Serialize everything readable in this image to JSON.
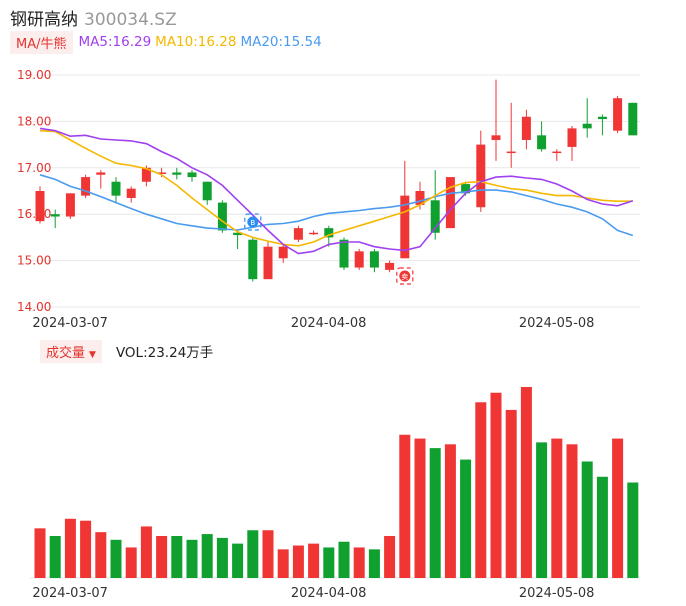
{
  "header": {
    "name": "钢研高纳",
    "code": "300034.SZ"
  },
  "ma_bar": {
    "selector_label": "MA/牛熊",
    "items": [
      {
        "label": "MA5:16.29",
        "color": "#a040f0"
      },
      {
        "label": "MA10:16.28",
        "color": "#f5b800"
      },
      {
        "label": "MA20:15.54",
        "color": "#4a9bf0"
      }
    ]
  },
  "volume_bar": {
    "selector_label": "成交量",
    "vol_text": "VOL:23.24万手"
  },
  "markers": {
    "buy": "B",
    "sell": "卖"
  },
  "colors": {
    "up": "#f03535",
    "down": "#10a030",
    "grid": "#e8e8e8"
  },
  "chart_data": {
    "type": "candlestick",
    "yticks": [
      "19.00",
      "18.00",
      "17.00",
      "16.00",
      "15.00",
      "14.00"
    ],
    "ylim": [
      14.0,
      19.0
    ],
    "xtick_labels": [
      "2024-03-07",
      "2024-04-08",
      "2024-05-08"
    ],
    "xtick_index": [
      1,
      18,
      33
    ],
    "candles": [
      {
        "o": 15.85,
        "c": 16.5,
        "h": 16.6,
        "l": 15.8
      },
      {
        "o": 16.0,
        "c": 15.95,
        "h": 16.1,
        "l": 15.7
      },
      {
        "o": 15.95,
        "c": 16.45,
        "h": 16.45,
        "l": 15.9
      },
      {
        "o": 16.4,
        "c": 16.8,
        "h": 16.85,
        "l": 16.35
      },
      {
        "o": 16.85,
        "c": 16.9,
        "h": 16.95,
        "l": 16.55
      },
      {
        "o": 16.7,
        "c": 16.4,
        "h": 16.8,
        "l": 16.25
      },
      {
        "o": 16.35,
        "c": 16.55,
        "h": 16.6,
        "l": 16.25
      },
      {
        "o": 16.7,
        "c": 17.0,
        "h": 17.05,
        "l": 16.6
      },
      {
        "o": 16.9,
        "c": 16.9,
        "h": 17.0,
        "l": 16.8
      },
      {
        "o": 16.9,
        "c": 16.85,
        "h": 17.0,
        "l": 16.75
      },
      {
        "o": 16.9,
        "c": 16.8,
        "h": 16.95,
        "l": 16.7
      },
      {
        "o": 16.7,
        "c": 16.3,
        "h": 16.7,
        "l": 16.2
      },
      {
        "o": 16.25,
        "c": 15.65,
        "h": 16.3,
        "l": 15.6
      },
      {
        "o": 15.6,
        "c": 15.55,
        "h": 15.65,
        "l": 15.25
      },
      {
        "o": 15.45,
        "c": 14.6,
        "h": 15.5,
        "l": 14.55
      },
      {
        "o": 14.6,
        "c": 15.3,
        "h": 15.4,
        "l": 14.6
      },
      {
        "o": 15.05,
        "c": 15.3,
        "h": 15.35,
        "l": 14.95
      },
      {
        "o": 15.45,
        "c": 15.7,
        "h": 15.75,
        "l": 15.4
      },
      {
        "o": 15.6,
        "c": 15.6,
        "h": 15.65,
        "l": 15.55
      },
      {
        "o": 15.7,
        "c": 15.5,
        "h": 15.75,
        "l": 15.3
      },
      {
        "o": 15.45,
        "c": 14.85,
        "h": 15.5,
        "l": 14.8
      },
      {
        "o": 14.85,
        "c": 15.2,
        "h": 15.25,
        "l": 14.8
      },
      {
        "o": 15.2,
        "c": 14.85,
        "h": 15.25,
        "l": 14.75
      },
      {
        "o": 14.8,
        "c": 14.95,
        "h": 15.0,
        "l": 14.75
      },
      {
        "o": 15.05,
        "c": 16.4,
        "h": 17.15,
        "l": 15.05
      },
      {
        "o": 16.2,
        "c": 16.5,
        "h": 16.7,
        "l": 16.1
      },
      {
        "o": 16.3,
        "c": 15.6,
        "h": 16.95,
        "l": 15.45
      },
      {
        "o": 15.7,
        "c": 16.8,
        "h": 16.8,
        "l": 15.7
      },
      {
        "o": 16.65,
        "c": 16.45,
        "h": 16.7,
        "l": 16.4
      },
      {
        "o": 16.15,
        "c": 17.5,
        "h": 17.8,
        "l": 16.05
      },
      {
        "o": 17.6,
        "c": 17.7,
        "h": 18.9,
        "l": 17.15
      },
      {
        "o": 17.35,
        "c": 17.35,
        "h": 18.4,
        "l": 17.0
      },
      {
        "o": 17.6,
        "c": 18.1,
        "h": 18.25,
        "l": 17.4
      },
      {
        "o": 17.7,
        "c": 17.4,
        "h": 18.0,
        "l": 17.35
      },
      {
        "o": 17.35,
        "c": 17.35,
        "h": 17.4,
        "l": 17.15
      },
      {
        "o": 17.45,
        "c": 17.85,
        "h": 17.9,
        "l": 17.15
      },
      {
        "o": 17.95,
        "c": 17.85,
        "h": 18.5,
        "l": 17.65
      },
      {
        "o": 18.1,
        "c": 18.05,
        "h": 18.15,
        "l": 17.7
      },
      {
        "o": 17.8,
        "c": 18.5,
        "h": 18.55,
        "l": 17.75
      },
      {
        "o": 18.4,
        "c": 17.7,
        "h": 18.4,
        "l": 17.7
      }
    ],
    "ma5": [
      17.85,
      17.8,
      17.68,
      17.7,
      17.62,
      17.6,
      17.58,
      17.52,
      17.35,
      17.2,
      17.0,
      16.85,
      16.62,
      16.3,
      15.98,
      15.65,
      15.35,
      15.15,
      15.2,
      15.35,
      15.4,
      15.4,
      15.3,
      15.25,
      15.22,
      15.3,
      15.7,
      16.1,
      16.45,
      16.7,
      16.8,
      16.82,
      16.78,
      16.75,
      16.65,
      16.5,
      16.32,
      16.22,
      16.18,
      16.29
    ],
    "ma10": [
      17.8,
      17.78,
      17.6,
      17.42,
      17.25,
      17.1,
      17.05,
      16.98,
      16.85,
      16.62,
      16.35,
      16.1,
      15.85,
      15.62,
      15.5,
      15.42,
      15.35,
      15.32,
      15.4,
      15.55,
      15.65,
      15.75,
      15.85,
      15.95,
      16.05,
      16.2,
      16.4,
      16.58,
      16.68,
      16.7,
      16.62,
      16.55,
      16.52,
      16.45,
      16.4,
      16.4,
      16.35,
      16.3,
      16.28,
      16.28
    ],
    "ma20": [
      16.85,
      16.75,
      16.6,
      16.5,
      16.38,
      16.25,
      16.12,
      16.0,
      15.9,
      15.8,
      15.75,
      15.7,
      15.68,
      15.66,
      15.72,
      15.78,
      15.8,
      15.85,
      15.95,
      16.02,
      16.05,
      16.08,
      16.12,
      16.15,
      16.2,
      16.28,
      16.38,
      16.45,
      16.48,
      16.52,
      16.52,
      16.48,
      16.4,
      16.32,
      16.22,
      16.15,
      16.05,
      15.9,
      15.65,
      15.54
    ],
    "volumes": [
      0.26,
      0.22,
      0.31,
      0.3,
      0.24,
      0.2,
      0.16,
      0.27,
      0.22,
      0.22,
      0.2,
      0.23,
      0.21,
      0.18,
      0.25,
      0.25,
      0.15,
      0.17,
      0.18,
      0.16,
      0.19,
      0.16,
      0.15,
      0.22,
      0.75,
      0.73,
      0.68,
      0.7,
      0.62,
      0.92,
      0.97,
      0.88,
      1.0,
      0.71,
      0.73,
      0.7,
      0.61,
      0.53,
      0.73,
      0.5
    ]
  }
}
